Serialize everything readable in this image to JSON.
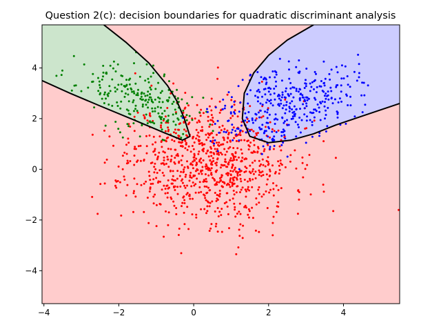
{
  "chart_data": {
    "type": "scatter",
    "title": "Question 2(c): decision boundaries for quadratic discriminant analysis",
    "xlabel": "",
    "ylabel": "",
    "xlim": [
      -4.05,
      5.5
    ],
    "ylim": [
      -5.3,
      5.7
    ],
    "x_ticks": [
      -4,
      -2,
      0,
      2,
      4
    ],
    "y_ticks": [
      -4,
      -2,
      0,
      2,
      4
    ],
    "grid": false,
    "legend": "none",
    "regions": [
      {
        "class": "red",
        "fill": "#ffcccc"
      },
      {
        "class": "green",
        "fill": "#cce5cc"
      },
      {
        "class": "blue",
        "fill": "#ccccff"
      }
    ],
    "boundaries": [
      {
        "name": "green-red",
        "x": [
          -2.4,
          -1.8,
          -1.2,
          -0.7,
          -0.45,
          -0.25,
          -0.1,
          -0.3,
          -0.8,
          -1.6,
          -2.5,
          -3.3,
          -4.05
        ],
        "y": [
          5.7,
          5.0,
          4.2,
          3.3,
          2.7,
          2.0,
          1.3,
          1.15,
          1.45,
          1.95,
          2.5,
          3.0,
          3.5
        ]
      },
      {
        "name": "blue-red",
        "x": [
          3.2,
          2.5,
          2.0,
          1.6,
          1.35,
          1.3,
          1.5,
          2.0,
          2.6,
          3.2,
          3.8,
          4.5,
          5.5
        ],
        "y": [
          5.7,
          5.1,
          4.5,
          3.8,
          3.0,
          2.0,
          1.3,
          1.05,
          1.15,
          1.4,
          1.75,
          2.1,
          2.6
        ]
      }
    ],
    "series": [
      {
        "color": "#ff0000",
        "center": [
          0.4,
          0.3
        ],
        "spread": [
          1.1,
          1.2
        ],
        "count": 900,
        "seed": 11
      },
      {
        "color": "#008000",
        "center": [
          -1.5,
          2.8
        ],
        "spread": [
          0.8,
          0.7
        ],
        "count": 220,
        "seed": 23,
        "corr": -0.55
      },
      {
        "color": "#0000ff",
        "center": [
          2.5,
          2.6
        ],
        "spread": [
          0.9,
          0.8
        ],
        "count": 380,
        "seed": 37,
        "corr": 0.35
      }
    ]
  }
}
